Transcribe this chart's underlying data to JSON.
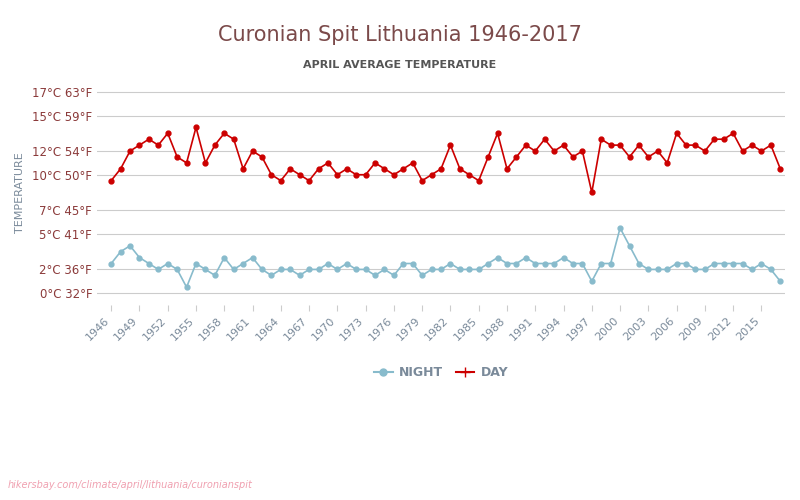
{
  "title": "Curonian Spit Lithuania 1946-2017",
  "subtitle": "APRIL AVERAGE TEMPERATURE",
  "ylabel": "TEMPERATURE",
  "watermark": "hikersbay.com/climate/april/lithuania/curonianspit",
  "background_color": "#ffffff",
  "grid_color": "#cccccc",
  "title_color": "#7b4a4a",
  "subtitle_color": "#555555",
  "tick_label_color": "#8b3a3a",
  "axis_label_color": "#7a8a9a",
  "watermark_color": "#f0a0b0",
  "day_color": "#cc0000",
  "night_color": "#88bbcc",
  "years": [
    1946,
    1947,
    1948,
    1949,
    1950,
    1951,
    1952,
    1953,
    1954,
    1955,
    1956,
    1957,
    1958,
    1959,
    1960,
    1961,
    1962,
    1963,
    1964,
    1965,
    1966,
    1967,
    1968,
    1969,
    1970,
    1971,
    1972,
    1973,
    1974,
    1975,
    1976,
    1977,
    1978,
    1979,
    1980,
    1981,
    1982,
    1983,
    1984,
    1985,
    1986,
    1987,
    1988,
    1989,
    1990,
    1991,
    1992,
    1993,
    1994,
    1995,
    1996,
    1997,
    1998,
    1999,
    2000,
    2001,
    2002,
    2003,
    2004,
    2005,
    2006,
    2007,
    2008,
    2009,
    2010,
    2011,
    2012,
    2013,
    2014,
    2015,
    2016,
    2017
  ],
  "day_temps": [
    9.5,
    10.5,
    12.0,
    12.5,
    13.0,
    12.5,
    13.5,
    11.5,
    11.0,
    14.0,
    11.0,
    12.5,
    13.5,
    13.0,
    10.5,
    12.0,
    11.5,
    10.0,
    9.5,
    10.5,
    10.0,
    9.5,
    10.5,
    11.0,
    10.0,
    10.5,
    10.0,
    10.0,
    11.0,
    10.5,
    10.0,
    10.5,
    11.0,
    9.5,
    10.0,
    10.5,
    12.5,
    10.5,
    10.0,
    9.5,
    11.5,
    13.5,
    10.5,
    11.5,
    12.5,
    12.0,
    13.0,
    12.0,
    12.5,
    11.5,
    12.0,
    8.5,
    13.0,
    12.5,
    12.5,
    11.5,
    12.5,
    11.5,
    12.0,
    11.0,
    13.5,
    12.5,
    12.5,
    12.0,
    13.0,
    13.0,
    13.5,
    12.0,
    12.5,
    12.0,
    12.5,
    10.5
  ],
  "night_temps": [
    2.5,
    3.5,
    4.0,
    3.0,
    2.5,
    2.0,
    2.5,
    2.0,
    0.5,
    2.5,
    2.0,
    1.5,
    3.0,
    2.0,
    2.5,
    3.0,
    2.0,
    1.5,
    2.0,
    2.0,
    1.5,
    2.0,
    2.0,
    2.5,
    2.0,
    2.5,
    2.0,
    2.0,
    1.5,
    2.0,
    1.5,
    2.5,
    2.5,
    1.5,
    2.0,
    2.0,
    2.5,
    2.0,
    2.0,
    2.0,
    2.5,
    3.0,
    2.5,
    2.5,
    3.0,
    2.5,
    2.5,
    2.5,
    3.0,
    2.5,
    2.5,
    1.0,
    2.5,
    2.5,
    5.5,
    4.0,
    2.5,
    2.0,
    2.0,
    2.0,
    2.5,
    2.5,
    2.0,
    2.0,
    2.5,
    2.5,
    2.5,
    2.5,
    2.0,
    2.5,
    2.0,
    1.0
  ],
  "yticks_c": [
    0,
    2,
    5,
    7,
    10,
    12,
    15,
    17
  ],
  "yticks_f": [
    32,
    36,
    41,
    45,
    50,
    54,
    59,
    63
  ],
  "xtick_years": [
    1946,
    1949,
    1952,
    1955,
    1958,
    1961,
    1964,
    1967,
    1970,
    1973,
    1976,
    1979,
    1982,
    1985,
    1988,
    1991,
    1994,
    1997,
    2000,
    2003,
    2006,
    2009,
    2012,
    2015
  ],
  "ylim": [
    -1,
    18
  ],
  "legend_night": "NIGHT",
  "legend_day": "DAY"
}
